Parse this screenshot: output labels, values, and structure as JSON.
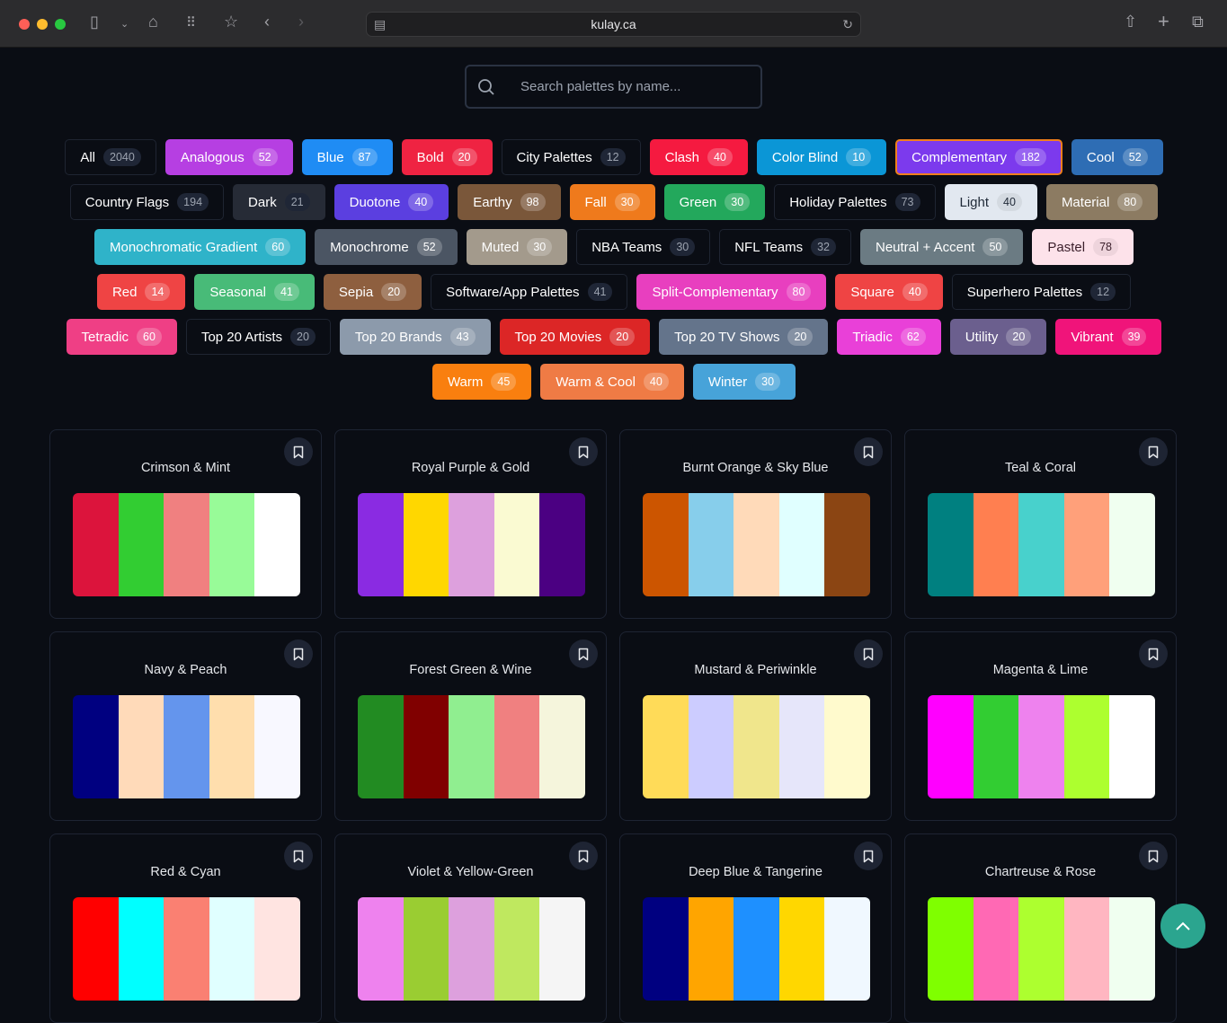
{
  "browser": {
    "url": "kulay.ca"
  },
  "search": {
    "placeholder": "Search palettes by name..."
  },
  "categories": [
    {
      "label": "All",
      "count": "2040",
      "style": "outline"
    },
    {
      "label": "Analogous",
      "count": "52",
      "bg": "#b63fe2"
    },
    {
      "label": "Blue",
      "count": "87",
      "bg": "#1f8cf4"
    },
    {
      "label": "Bold",
      "count": "20",
      "bg": "#ef2342"
    },
    {
      "label": "City Palettes",
      "count": "12",
      "style": "outline"
    },
    {
      "label": "Clash",
      "count": "40",
      "bg": "#f51a40"
    },
    {
      "label": "Color Blind",
      "count": "10",
      "bg": "#0b96d6"
    },
    {
      "label": "Complementary",
      "count": "182",
      "bg": "#7c3aed",
      "selected": true
    },
    {
      "label": "Cool",
      "count": "52",
      "bg": "#2e6db4"
    },
    {
      "label": "Country Flags",
      "count": "194",
      "style": "outline"
    },
    {
      "label": "Dark",
      "count": "21",
      "bg": "#262b36",
      "style": "darkc"
    },
    {
      "label": "Duotone",
      "count": "40",
      "bg": "#5b3fe0"
    },
    {
      "label": "Earthy",
      "count": "98",
      "bg": "#7a573a"
    },
    {
      "label": "Fall",
      "count": "30",
      "bg": "#ef7a1c"
    },
    {
      "label": "Green",
      "count": "30",
      "bg": "#23a85c"
    },
    {
      "label": "Holiday Palettes",
      "count": "73",
      "style": "outline"
    },
    {
      "label": "Light",
      "count": "40",
      "bg": "#e2e8f0",
      "fg": "#1f2937"
    },
    {
      "label": "Material",
      "count": "80",
      "bg": "#8c7b62"
    },
    {
      "label": "Monochromatic Gradient",
      "count": "60",
      "bg": "#2fb3c9"
    },
    {
      "label": "Monochrome",
      "count": "52",
      "bg": "#4b5563"
    },
    {
      "label": "Muted",
      "count": "30",
      "bg": "#a39a8c"
    },
    {
      "label": "NBA Teams",
      "count": "30",
      "style": "outline"
    },
    {
      "label": "NFL Teams",
      "count": "32",
      "style": "outline"
    },
    {
      "label": "Neutral + Accent",
      "count": "50",
      "bg": "#6b7b83"
    },
    {
      "label": "Pastel",
      "count": "78",
      "bg": "#fde2ea",
      "fg": "#3b1f2b"
    },
    {
      "label": "Red",
      "count": "14",
      "bg": "#ef4444"
    },
    {
      "label": "Seasonal",
      "count": "41",
      "bg": "#48bb78"
    },
    {
      "label": "Sepia",
      "count": "20",
      "bg": "#8e5f3f"
    },
    {
      "label": "Software/App Palettes",
      "count": "41",
      "style": "outline"
    },
    {
      "label": "Split-Complementary",
      "count": "80",
      "bg": "#e83fbf"
    },
    {
      "label": "Square",
      "count": "40",
      "bg": "#ef4444"
    },
    {
      "label": "Superhero Palettes",
      "count": "12",
      "style": "outline"
    },
    {
      "label": "Tetradic",
      "count": "60",
      "bg": "#ef3f85"
    },
    {
      "label": "Top 20 Artists",
      "count": "20",
      "style": "outline"
    },
    {
      "label": "Top 20 Brands",
      "count": "43",
      "bg": "#8c9aab"
    },
    {
      "label": "Top 20 Movies",
      "count": "20",
      "bg": "#dc2626"
    },
    {
      "label": "Top 20 TV Shows",
      "count": "20",
      "bg": "#64748b"
    },
    {
      "label": "Triadic",
      "count": "62",
      "bg": "#e940d8"
    },
    {
      "label": "Utility",
      "count": "20",
      "bg": "#6b5f8e"
    },
    {
      "label": "Vibrant",
      "count": "39",
      "bg": "#f0147a"
    },
    {
      "label": "Warm",
      "count": "45",
      "bg": "#f97f0f"
    },
    {
      "label": "Warm & Cool",
      "count": "40",
      "bg": "#ef7b45"
    },
    {
      "label": "Winter",
      "count": "30",
      "bg": "#47a3d9"
    }
  ],
  "palettes": [
    {
      "name": "Crimson & Mint",
      "colors": [
        "#DC143C",
        "#32CD32",
        "#F08080",
        "#98FB98",
        "#FFFFFF"
      ]
    },
    {
      "name": "Royal Purple & Gold",
      "colors": [
        "#8A2BE2",
        "#FFD700",
        "#DDA0DD",
        "#FAFAD2",
        "#4B0082"
      ]
    },
    {
      "name": "Burnt Orange & Sky Blue",
      "colors": [
        "#CC5500",
        "#87CEEB",
        "#FFDAB9",
        "#E0FFFF",
        "#8B4513"
      ]
    },
    {
      "name": "Teal & Coral",
      "colors": [
        "#008080",
        "#FF7F50",
        "#48D1CC",
        "#FFA07A",
        "#F0FFF0"
      ]
    },
    {
      "name": "Navy & Peach",
      "colors": [
        "#000080",
        "#FFDAB9",
        "#6495ED",
        "#FFDEAD",
        "#F8F8FF"
      ]
    },
    {
      "name": "Forest Green & Wine",
      "colors": [
        "#228B22",
        "#800000",
        "#90EE90",
        "#F08080",
        "#F5F5DC"
      ]
    },
    {
      "name": "Mustard & Periwinkle",
      "colors": [
        "#FFDB58",
        "#CCCCFF",
        "#F0E68C",
        "#E6E6FA",
        "#FFFACD"
      ]
    },
    {
      "name": "Magenta & Lime",
      "colors": [
        "#FF00FF",
        "#32CD32",
        "#EE82EE",
        "#ADFF2F",
        "#FFFFFF"
      ]
    },
    {
      "name": "Red & Cyan",
      "colors": [
        "#FF0000",
        "#00FFFF",
        "#FA8072",
        "#E0FFFF",
        "#FFE4E1"
      ]
    },
    {
      "name": "Violet & Yellow-Green",
      "colors": [
        "#EE82EE",
        "#9ACD32",
        "#DDA0DD",
        "#BFE85F",
        "#F5F5F5"
      ]
    },
    {
      "name": "Deep Blue & Tangerine",
      "colors": [
        "#000080",
        "#FFA500",
        "#1E90FF",
        "#FFD700",
        "#F0F8FF"
      ]
    },
    {
      "name": "Chartreuse & Rose",
      "colors": [
        "#7FFF00",
        "#FF69B4",
        "#ADFF2F",
        "#FFB6C1",
        "#F0FFF0"
      ]
    }
  ]
}
